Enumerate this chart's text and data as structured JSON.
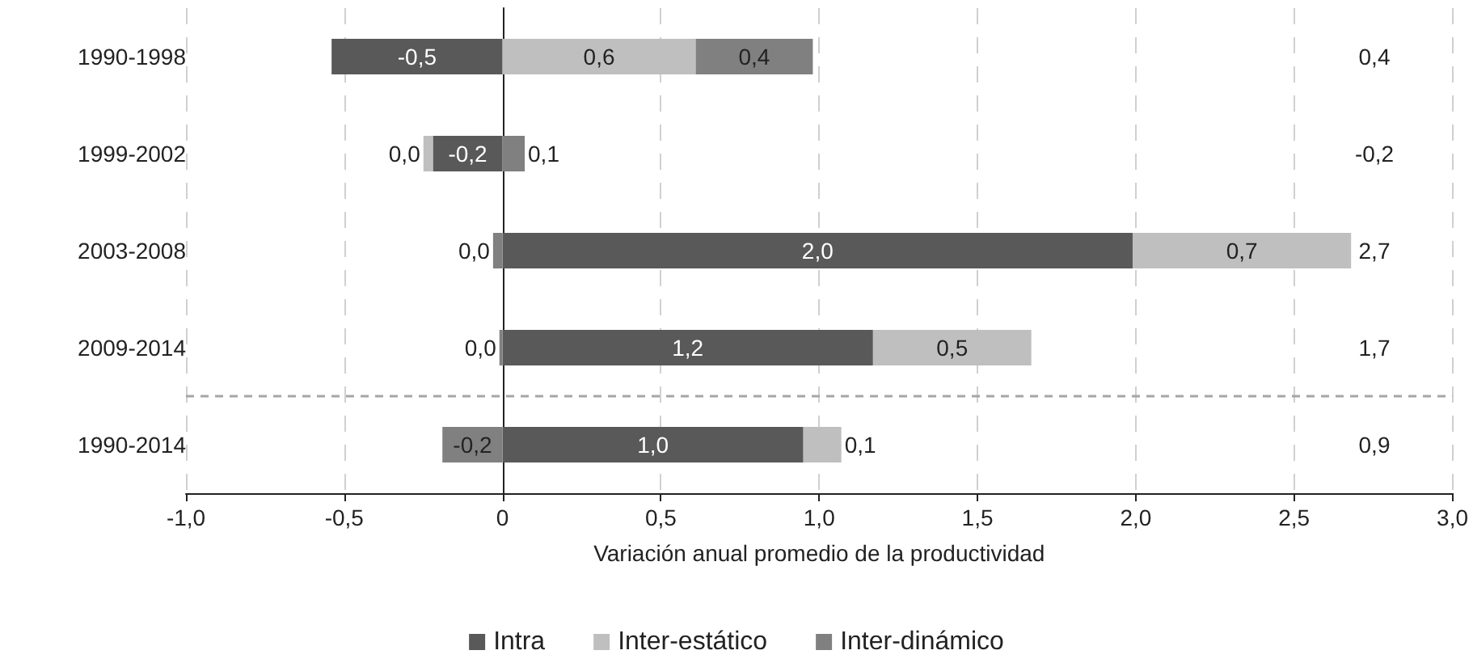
{
  "chart_data": {
    "type": "bar",
    "orientation": "horizontal",
    "stacked": true,
    "xlabel": "Variación anual promedio de la productividad",
    "categories": [
      "1990-1998",
      "1999-2002",
      "2003-2008",
      "2009-2014",
      "1990-2014"
    ],
    "series": [
      {
        "name": "Intra",
        "color": "#595959",
        "values": [
          -0.54,
          -0.22,
          1.99,
          1.17,
          0.95
        ],
        "value_labels": [
          "-0,5",
          "-0,2",
          "2,0",
          "1,2",
          "1,0"
        ]
      },
      {
        "name": "Inter-estático",
        "color": "#bfbfbf",
        "values": [
          0.61,
          -0.03,
          0.69,
          0.5,
          0.12
        ],
        "value_labels": [
          "0,6",
          "0,0",
          "0,7",
          "0,5",
          "0,1"
        ]
      },
      {
        "name": "Inter-dinámico",
        "color": "#808080",
        "values": [
          0.37,
          0.07,
          -0.03,
          -0.01,
          -0.19
        ],
        "value_labels": [
          "0,4",
          "0,1",
          "0,0",
          "0,0",
          "-0,2"
        ]
      }
    ],
    "annotations": [
      "0,4",
      "-0,2",
      "2,7",
      "1,7",
      "0,9"
    ],
    "xlim": [
      -1,
      3
    ],
    "xticks": [
      {
        "value": -1,
        "label": "-1,0"
      },
      {
        "value": -0.5,
        "label": "-0,5"
      },
      0,
      {
        "value": 0.5,
        "label": "0,5"
      },
      {
        "value": 1,
        "label": "1,0"
      },
      {
        "value": 1.5,
        "label": "1,5"
      },
      {
        "value": 2,
        "label": "2,0"
      },
      {
        "value": 2.5,
        "label": "2,5"
      },
      {
        "value": 3,
        "label": "3,0"
      }
    ],
    "ref_lines": [
      {
        "axis": "y",
        "value": "1990-2014",
        "color": "#a6a6a6",
        "line_style": "dashed"
      }
    ],
    "grid": "x",
    "legend": "bottom"
  }
}
